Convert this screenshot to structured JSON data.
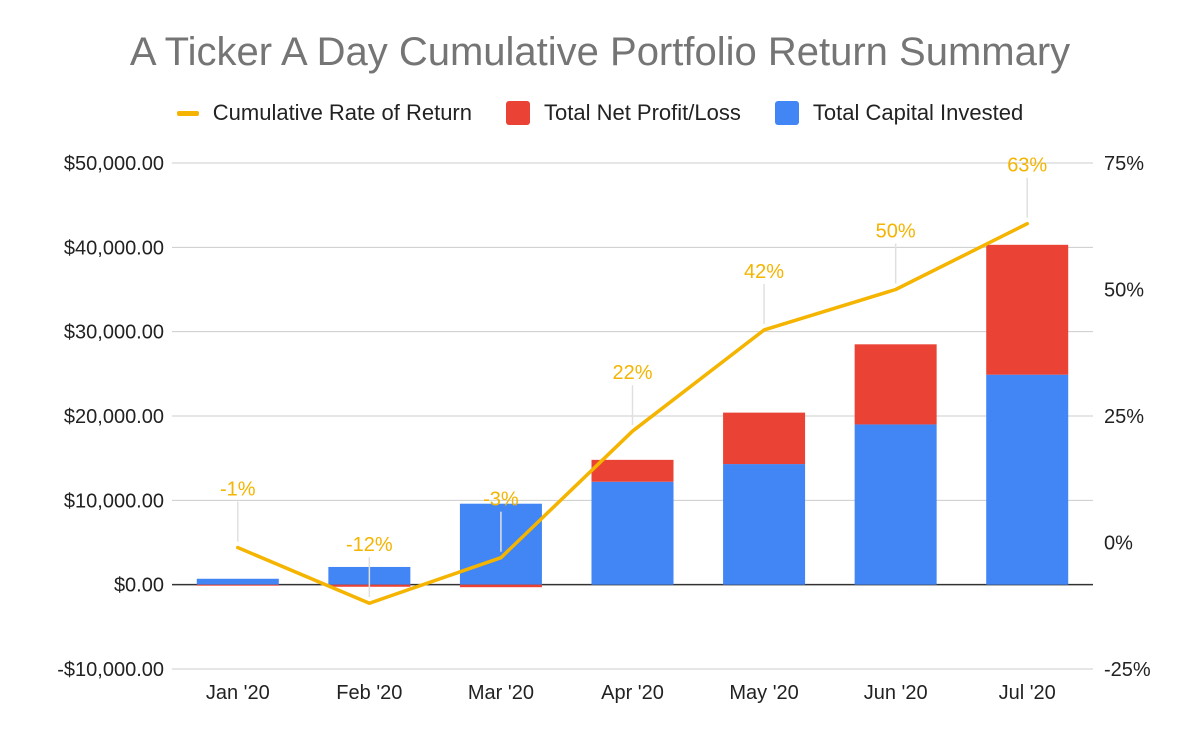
{
  "chart_data": {
    "type": "bar",
    "title": "A Ticker A Day Cumulative Portfolio Return Summary",
    "categories": [
      "Jan '20",
      "Feb '20",
      "Mar '20",
      "Apr '20",
      "May '20",
      "Jun '20",
      "Jul '20"
    ],
    "stacked": true,
    "series": [
      {
        "name": "Total Capital Invested",
        "kind": "bar",
        "axis": "left",
        "color": "#4285f4",
        "values": [
          700,
          2100,
          9600,
          12200,
          14300,
          19000,
          24900
        ]
      },
      {
        "name": "Total Net Profit/Loss",
        "kind": "bar",
        "axis": "left",
        "color": "#ea4335",
        "values": [
          -10,
          -250,
          -300,
          2600,
          6100,
          9500,
          15400
        ]
      },
      {
        "name": "Cumulative Rate of Return",
        "kind": "line",
        "axis": "right",
        "color": "#f4b400",
        "values": [
          -1,
          -12,
          -3,
          22,
          42,
          50,
          63
        ],
        "data_labels": [
          "-1%",
          "-12%",
          "-3%",
          "22%",
          "42%",
          "50%",
          "63%"
        ]
      }
    ],
    "legend_order": [
      "Cumulative Rate of Return",
      "Total Net Profit/Loss",
      "Total Capital Invested"
    ],
    "legend_position": "top",
    "y_left": {
      "ylim": [
        -10000,
        50000
      ],
      "ticks": [
        -10000,
        0,
        10000,
        20000,
        30000,
        40000,
        50000
      ],
      "tick_labels": [
        "-$10,000.00",
        "$0.00",
        "$10,000.00",
        "$20,000.00",
        "$30,000.00",
        "$40,000.00",
        "$50,000.00"
      ]
    },
    "y_right": {
      "ylim": [
        -25,
        75
      ],
      "ticks": [
        -25,
        0,
        25,
        50,
        75
      ],
      "tick_labels": [
        "-25%",
        "0%",
        "25%",
        "50%",
        "75%"
      ]
    },
    "grid": true,
    "xlabel": "",
    "ylabel": ""
  }
}
